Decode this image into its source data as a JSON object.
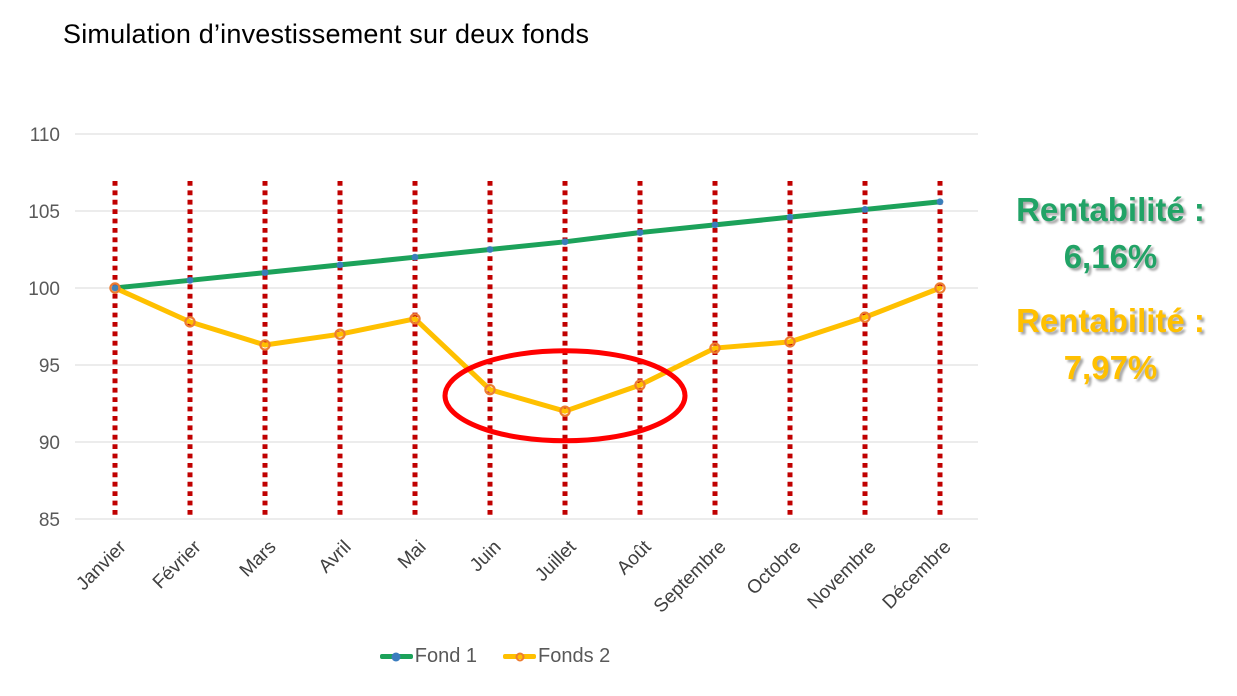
{
  "page": {
    "background": "#ffffff"
  },
  "chart_data": {
    "type": "line",
    "title": "Simulation d’investissement sur deux fonds",
    "categories": [
      "Janvier",
      "Février",
      "Mars",
      "Avril",
      "Mai",
      "Juin",
      "Juillet",
      "Août",
      "Septembre",
      "Octobre",
      "Novembre",
      "Décembre"
    ],
    "series": [
      {
        "name": "Fond 1",
        "color": "#1CA25A",
        "marker": "dot",
        "marker_color": "#3A7DBF",
        "values": [
          100,
          100.5,
          101,
          101.5,
          102,
          102.5,
          103,
          103.6,
          104.1,
          104.6,
          105.1,
          105.6
        ]
      },
      {
        "name": "Fonds 2",
        "color": "#FFC000",
        "marker": "ring",
        "marker_color": "#ED7D31",
        "values": [
          100,
          97.8,
          96.3,
          97,
          98,
          93.4,
          92,
          93.7,
          96.1,
          96.5,
          98.1,
          100
        ]
      }
    ],
    "xlabel": "",
    "ylabel": "",
    "ylim": [
      85,
      110
    ],
    "yticks": [
      85,
      90,
      95,
      100,
      105,
      110
    ],
    "grid": true,
    "gridline_color": "#D9D9D9",
    "axis_label_color": "#595959",
    "month_label_color": "#404040",
    "legend_position": "bottom",
    "guide_lines": {
      "style": "dotted",
      "color": "#C00000",
      "at_each_category": true
    },
    "annotation_ellipse": {
      "color": "#FF0000",
      "around_categories": [
        "Juin",
        "Juillet",
        "Août"
      ],
      "center_value": 93,
      "ry": 45,
      "rx_pad": 45
    }
  },
  "annotations": [
    {
      "line1": "Rentabilité :",
      "line2": "6,16%",
      "color": "#21A366"
    },
    {
      "line1": "Rentabilité :",
      "line2": "7,97%",
      "color": "#FFC000"
    }
  ]
}
